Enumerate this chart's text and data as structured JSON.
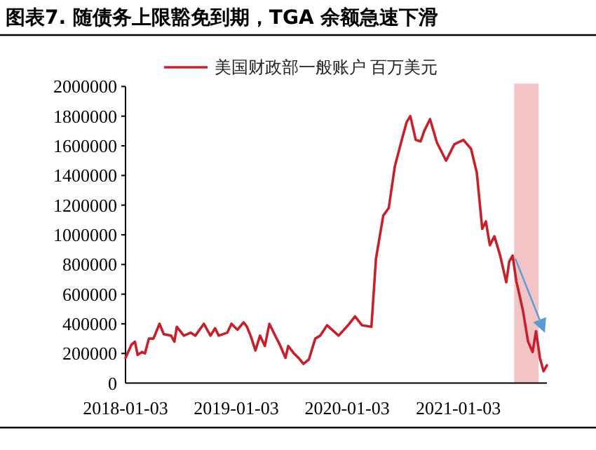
{
  "chart_data": {
    "type": "line",
    "title": "图表7.   随债务上限豁免到期，TGA 余额急速下滑",
    "x": [
      "2018-01-03",
      "2018-01-23",
      "2018-02-03",
      "2018-02-12",
      "2018-02-26",
      "2018-03-08",
      "2018-03-21",
      "2018-04-05",
      "2018-04-25",
      "2018-05-09",
      "2018-06-02",
      "2018-06-13",
      "2018-06-21",
      "2018-07-14",
      "2018-08-06",
      "2018-08-21",
      "2018-09-18",
      "2018-10-10",
      "2018-10-25",
      "2018-11-06",
      "2018-12-04",
      "2018-12-18",
      "2019-01-07",
      "2019-01-27",
      "2019-02-07",
      "2019-02-19",
      "2019-03-07",
      "2019-03-22",
      "2019-04-07",
      "2019-04-22",
      "2019-05-11",
      "2019-05-26",
      "2019-06-14",
      "2019-06-23",
      "2019-07-12",
      "2019-07-27",
      "2019-08-12",
      "2019-08-30",
      "2019-09-20",
      "2019-10-06",
      "2019-10-29",
      "2019-12-06",
      "2020-01-06",
      "2020-01-29",
      "2020-02-21",
      "2020-03-23",
      "2020-04-07",
      "2020-05-01",
      "2020-05-19",
      "2020-06-08",
      "2020-07-01",
      "2020-07-17",
      "2020-07-29",
      "2020-08-16",
      "2020-09-01",
      "2020-09-13",
      "2020-10-02",
      "2020-10-25",
      "2020-11-24",
      "2020-12-21",
      "2021-01-20",
      "2021-02-14",
      "2021-03-05",
      "2021-03-23",
      "2021-04-04",
      "2021-04-17",
      "2021-05-02",
      "2021-05-21",
      "2021-06-10",
      "2021-06-20",
      "2021-07-01",
      "2021-07-13",
      "2021-08-03",
      "2021-08-21",
      "2021-09-05",
      "2021-09-16",
      "2021-09-29",
      "2021-10-11",
      "2021-10-22"
    ],
    "series": [
      {
        "name": "美国财政部一般账户 百万美元",
        "color": "#c8202a",
        "values": [
          170000,
          260000,
          280000,
          190000,
          210000,
          200000,
          300000,
          300000,
          400000,
          330000,
          320000,
          280000,
          380000,
          320000,
          340000,
          320000,
          400000,
          320000,
          370000,
          320000,
          340000,
          400000,
          360000,
          410000,
          380000,
          320000,
          220000,
          320000,
          250000,
          400000,
          320000,
          260000,
          170000,
          250000,
          200000,
          170000,
          130000,
          160000,
          300000,
          320000,
          390000,
          320000,
          390000,
          450000,
          390000,
          380000,
          840000,
          1130000,
          1180000,
          1460000,
          1640000,
          1760000,
          1800000,
          1640000,
          1630000,
          1700000,
          1780000,
          1620000,
          1500000,
          1610000,
          1640000,
          1580000,
          1420000,
          1040000,
          1090000,
          930000,
          990000,
          860000,
          680000,
          820000,
          860000,
          690000,
          500000,
          280000,
          210000,
          350000,
          170000,
          80000,
          120000
        ]
      }
    ],
    "xlim": [
      "2018-01-03",
      "2021-10-22"
    ],
    "xticks": [
      "2018-01-03",
      "2019-01-03",
      "2020-01-03",
      "2021-01-03"
    ],
    "ylim": [
      0,
      2000000
    ],
    "yticks": [
      0,
      200000,
      400000,
      600000,
      800000,
      1000000,
      1200000,
      1400000,
      1600000,
      1800000,
      2000000
    ],
    "bands": [
      {
        "axis": "x",
        "from": "2021-07-06",
        "to": "2021-09-25",
        "color": "#f2c4c6"
      }
    ],
    "legend": "top",
    "grid": false,
    "marker": "none",
    "line_style": "solid"
  }
}
